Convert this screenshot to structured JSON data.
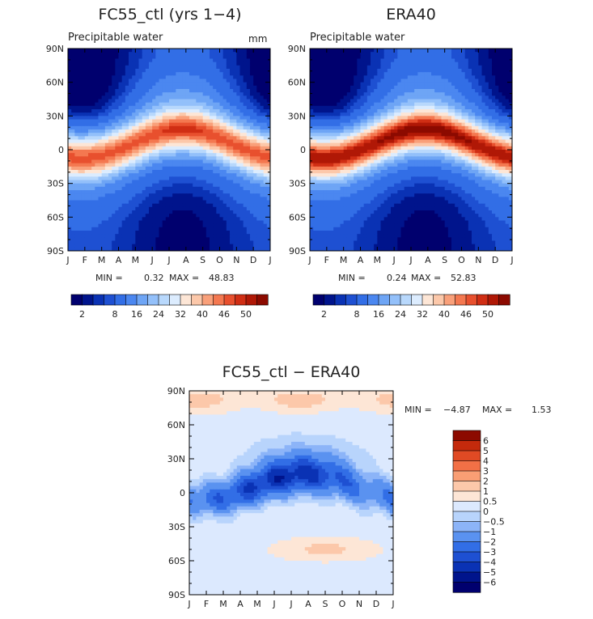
{
  "palette_main": [
    "#00006e",
    "#00148c",
    "#0a32b4",
    "#1e50d2",
    "#326ee6",
    "#4b87f0",
    "#6ea5f5",
    "#93c0fa",
    "#b8d8fc",
    "#dcecfe",
    "#fde6d6",
    "#fcc8aa",
    "#f9a07a",
    "#f47850",
    "#e8502e",
    "#d02e14",
    "#b01806",
    "#8c0a00",
    "#6a0000"
  ],
  "palette_diff": [
    "#00006e",
    "#00148c",
    "#0a32b4",
    "#1e50d2",
    "#326ee6",
    "#5a92f0",
    "#8cb4f8",
    "#b8d4fc",
    "#dce9fe",
    "#fde6d6",
    "#fcc8aa",
    "#f99e74",
    "#f27046",
    "#e04a24",
    "#c42a0c",
    "#8c0a00"
  ],
  "chart_data": [
    {
      "type": "heatmap",
      "title": "FC55_ctl (yrs 1−4)",
      "subtitle": "Precipitable water",
      "units": "mm",
      "x": [
        "J",
        "F",
        "M",
        "A",
        "M",
        "J",
        "J",
        "A",
        "S",
        "O",
        "N",
        "D",
        "J"
      ],
      "y_ticks": [
        "90N",
        "60N",
        "30N",
        "0",
        "30S",
        "60S",
        "90S"
      ],
      "min_label": "MIN =",
      "min_value": "0.32",
      "max_label": "MAX =",
      "max_value": "48.83",
      "colorbar_ticks": [
        "2",
        "8",
        "16",
        "24",
        "32",
        "40",
        "46",
        "50"
      ],
      "ylim": [
        -90,
        90
      ]
    },
    {
      "type": "heatmap",
      "title": "ERA40",
      "subtitle": "Precipitable water",
      "x": [
        "J",
        "F",
        "M",
        "A",
        "M",
        "J",
        "J",
        "A",
        "S",
        "O",
        "N",
        "D",
        "J"
      ],
      "y_ticks": [
        "90N",
        "60N",
        "30N",
        "0",
        "30S",
        "60S",
        "90S"
      ],
      "min_label": "MIN =",
      "min_value": "0.24",
      "max_label": "MAX =",
      "max_value": "52.83",
      "colorbar_ticks": [
        "2",
        "8",
        "16",
        "24",
        "32",
        "40",
        "46",
        "50"
      ],
      "ylim": [
        -90,
        90
      ]
    },
    {
      "type": "heatmap",
      "title": "FC55_ctl − ERA40",
      "x": [
        "J",
        "F",
        "M",
        "A",
        "M",
        "J",
        "J",
        "A",
        "S",
        "O",
        "N",
        "D",
        "J"
      ],
      "y_ticks": [
        "90N",
        "60N",
        "30N",
        "0",
        "30S",
        "60S",
        "90S"
      ],
      "min_label": "MIN =",
      "min_value": "−4.87",
      "max_label": "MAX =",
      "max_value": "1.53",
      "colorbar_ticks": [
        "6",
        "5",
        "4",
        "3",
        "2",
        "1",
        "0.5",
        "0",
        "−0.5",
        "−1",
        "−2",
        "−3",
        "−4",
        "−5",
        "−6"
      ],
      "ylim": [
        -90,
        90
      ]
    }
  ]
}
